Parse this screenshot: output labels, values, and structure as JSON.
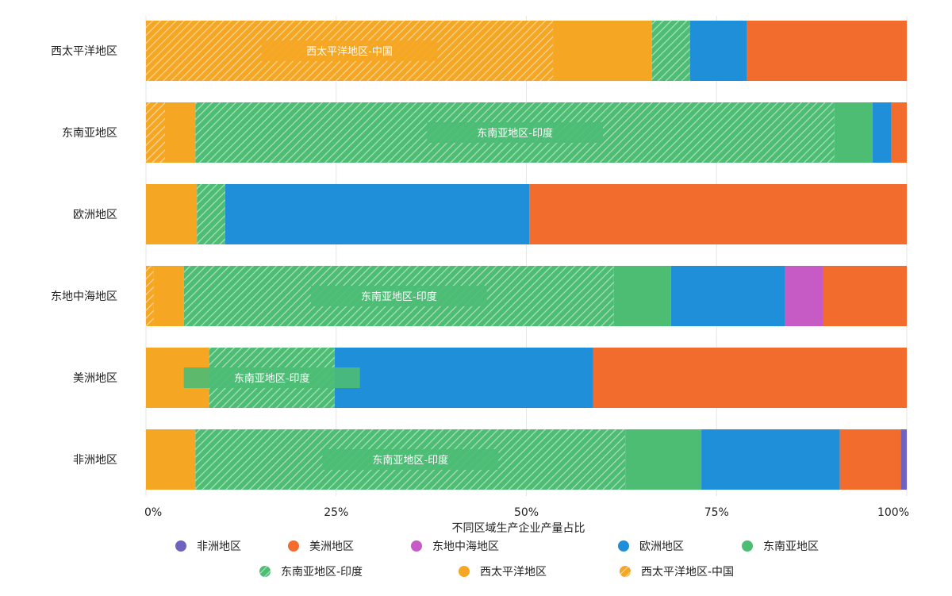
{
  "chart_data": {
    "type": "bar",
    "orientation": "horizontal",
    "stacked": true,
    "normalized": true,
    "xlabel": "不同区域生产企业产量占比",
    "xlim": [
      0,
      100
    ],
    "xticks": [
      "0%",
      "25%",
      "50%",
      "75%",
      "100%"
    ],
    "grid": true,
    "legend_position": "bottom",
    "categories": [
      "西太平洋地区",
      "东南亚地区",
      "欧洲地区",
      "东地中海地区",
      "美洲地区",
      "非洲地区"
    ],
    "series": [
      {
        "name": "西太平洋地区-中国",
        "color": "#F5A623",
        "pattern": "hatch",
        "values": [
          53.5,
          2.5,
          0.0,
          1.0,
          0.0,
          0.0
        ]
      },
      {
        "name": "西太平洋地区",
        "color": "#F5A623",
        "pattern": "solid",
        "values": [
          13.0,
          4.0,
          6.7,
          4.0,
          8.3,
          6.5
        ]
      },
      {
        "name": "东南亚地区-印度",
        "color": "#4DBD74",
        "pattern": "hatch",
        "values": [
          5.0,
          84.0,
          3.7,
          56.5,
          16.5,
          56.5
        ]
      },
      {
        "name": "东南亚地区",
        "color": "#4DBD74",
        "pattern": "solid",
        "values": [
          0.0,
          5.0,
          0.0,
          7.5,
          0.0,
          10.0
        ]
      },
      {
        "name": "欧洲地区",
        "color": "#1E8FD8",
        "pattern": "solid",
        "values": [
          7.5,
          2.5,
          40.0,
          15.0,
          34.0,
          18.2
        ]
      },
      {
        "name": "东地中海地区",
        "color": "#C75BC6",
        "pattern": "solid",
        "values": [
          0.0,
          0.0,
          0.0,
          5.0,
          0.0,
          0.0
        ]
      },
      {
        "name": "美洲地区",
        "color": "#F26C2E",
        "pattern": "solid",
        "values": [
          21.0,
          2.0,
          49.6,
          11.0,
          41.2,
          8.0
        ]
      },
      {
        "name": "非洲地区",
        "color": "#6E63C0",
        "pattern": "solid",
        "values": [
          0.0,
          0.0,
          0.0,
          0.0,
          0.0,
          0.8
        ]
      }
    ],
    "annotations": [
      {
        "category": "西太平洋地区",
        "text": "西太平洋地区-中国"
      },
      {
        "category": "东南亚地区",
        "text": "东南亚地区-印度"
      },
      {
        "category": "东地中海地区",
        "text": "东南亚地区-印度"
      },
      {
        "category": "美洲地区",
        "text": "东南亚地区-印度"
      },
      {
        "category": "非洲地区",
        "text": "东南亚地区-印度"
      }
    ],
    "legend": [
      {
        "name": "非洲地区",
        "color": "#6E63C0",
        "pattern": "solid"
      },
      {
        "name": "美洲地区",
        "color": "#F26C2E",
        "pattern": "solid"
      },
      {
        "name": "东地中海地区",
        "color": "#C75BC6",
        "pattern": "solid"
      },
      {
        "name": "欧洲地区",
        "color": "#1E8FD8",
        "pattern": "solid"
      },
      {
        "name": "东南亚地区",
        "color": "#4DBD74",
        "pattern": "solid"
      },
      {
        "name": "东南亚地区-印度",
        "color": "#4DBD74",
        "pattern": "hatch"
      },
      {
        "name": "西太平洋地区",
        "color": "#F5A623",
        "pattern": "solid"
      },
      {
        "name": "西太平洋地区-中国",
        "color": "#F5A623",
        "pattern": "hatch"
      }
    ]
  }
}
